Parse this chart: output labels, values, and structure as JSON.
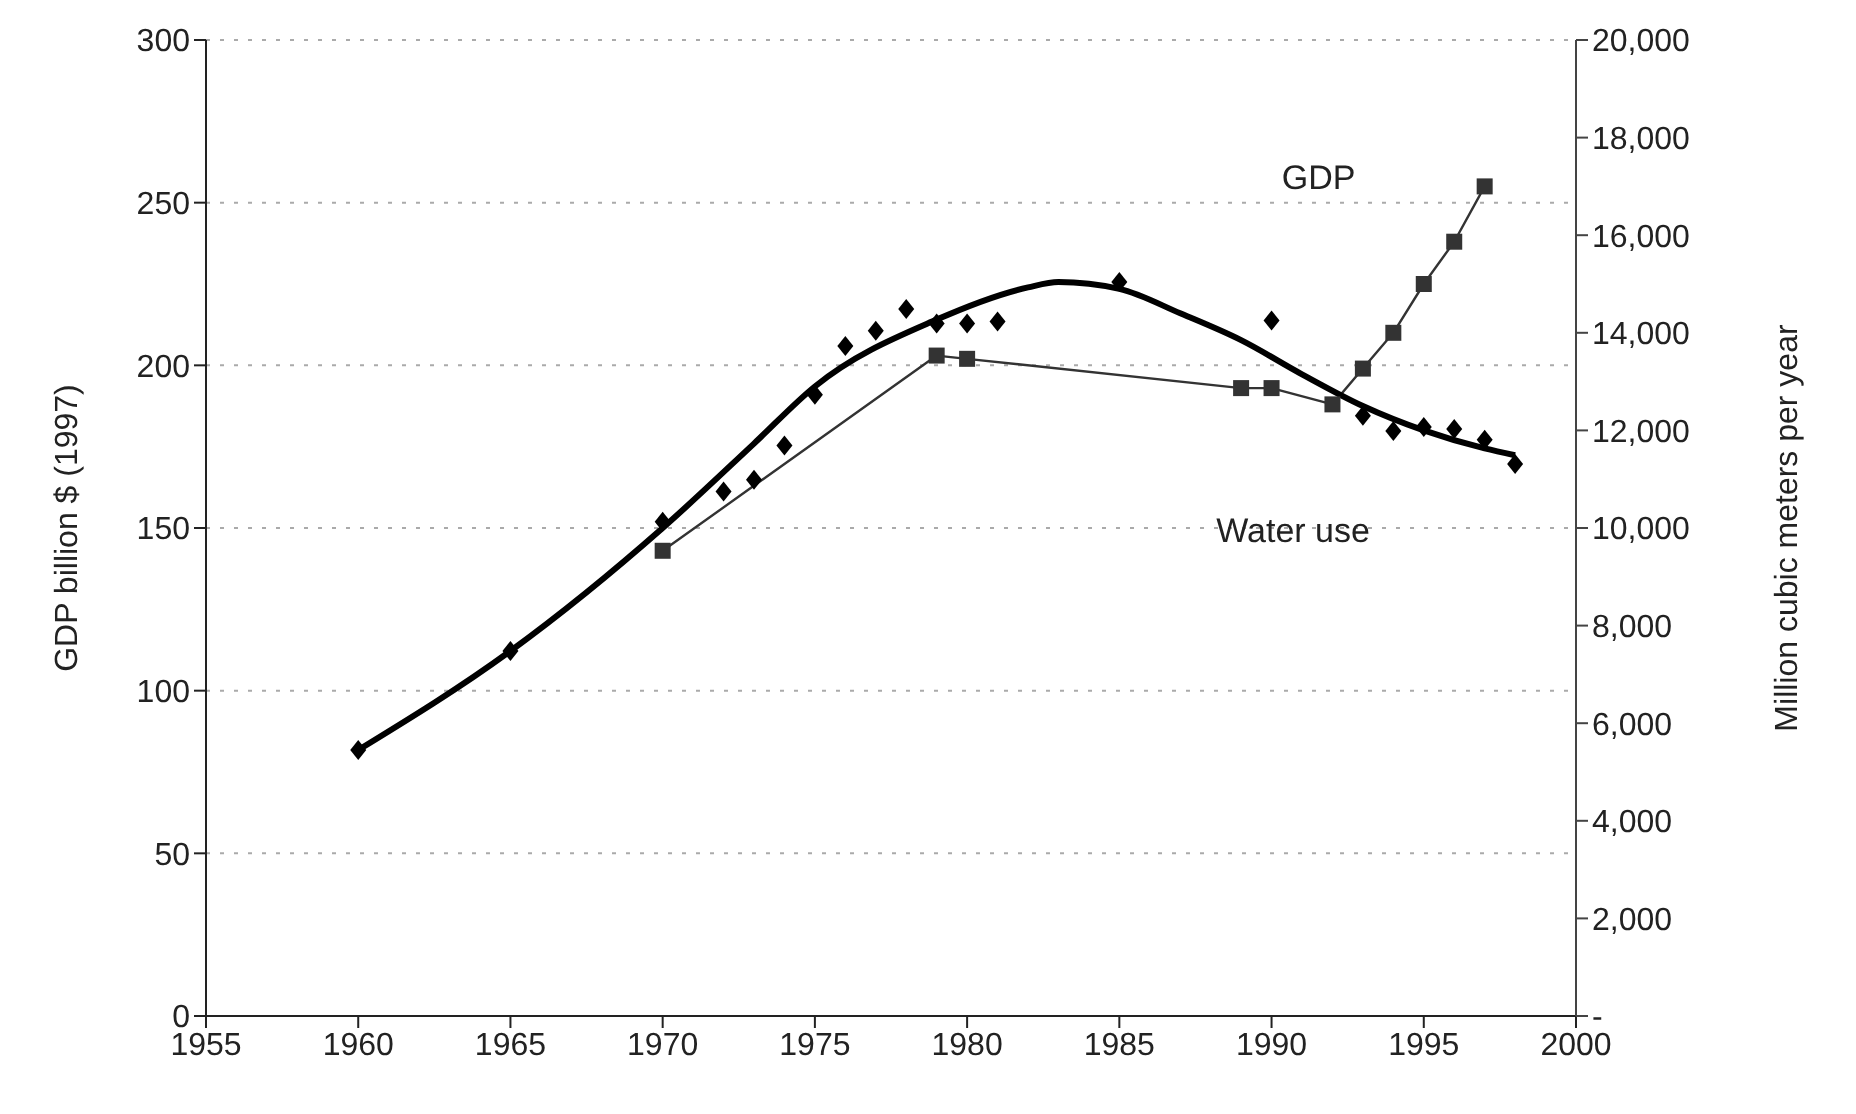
{
  "chart_data": {
    "type": "line",
    "ylabel": "GDP billion $ (1997)",
    "y2label": "Million cubic meters per year",
    "xlim": [
      1955,
      2000
    ],
    "xticks": [
      1955,
      1960,
      1965,
      1970,
      1975,
      1980,
      1985,
      1990,
      1995,
      2000
    ],
    "ylim": [
      0,
      300
    ],
    "yticks": [
      0,
      50,
      100,
      150,
      200,
      250,
      300
    ],
    "y2lim": [
      0,
      20000
    ],
    "y2ticks": [
      {
        "value": 0,
        "label": "-"
      },
      {
        "value": 2000,
        "label": "2,000"
      },
      {
        "value": 4000,
        "label": "4,000"
      },
      {
        "value": 6000,
        "label": "6,000"
      },
      {
        "value": 8000,
        "label": "8,000"
      },
      {
        "value": 10000,
        "label": "10,000"
      },
      {
        "value": 12000,
        "label": "12,000"
      },
      {
        "value": 14000,
        "label": "14,000"
      },
      {
        "value": 16000,
        "label": "16,000"
      },
      {
        "value": 18000,
        "label": "18,000"
      },
      {
        "value": 20000,
        "label": "20,000"
      }
    ],
    "grid": "y",
    "series": [
      {
        "name": "GDP",
        "color": "#333333",
        "marker": "square",
        "axis": "y",
        "x": [
          1970,
          1979,
          1980,
          1989,
          1990,
          1992,
          1993,
          1994,
          1995,
          1996,
          1997
        ],
        "values": [
          143,
          203,
          202,
          193,
          193,
          188,
          199,
          210,
          225,
          238,
          255
        ]
      },
      {
        "name": "Water use",
        "type": "scatter",
        "color": "#000000",
        "marker": "diamond",
        "axis": "y2",
        "x": [
          1960,
          1965,
          1970,
          1972,
          1973,
          1974,
          1975,
          1976,
          1977,
          1978,
          1979,
          1980,
          1981,
          1985,
          1990,
          1993,
          1994,
          1995,
          1996,
          1997,
          1998
        ],
        "values": [
          5450,
          7480,
          10130,
          10750,
          10990,
          11690,
          12730,
          13730,
          14040,
          14490,
          14190,
          14190,
          14230,
          15040,
          14250,
          12300,
          11990,
          12070,
          12030,
          11810,
          11310
        ]
      },
      {
        "color": "#000000",
        "marker": "none",
        "axis": "y2",
        "x": [
          1960,
          1965,
          1970,
          1973,
          1975,
          1979,
          1982,
          1983,
          1985,
          1987,
          1989,
          1991,
          1993,
          1995,
          1997,
          1998
        ],
        "values": [
          5450,
          7480,
          10000,
          11730,
          12900,
          14270,
          14930,
          15040,
          14900,
          14400,
          13850,
          13150,
          12500,
          12000,
          11630,
          11490
        ]
      }
    ]
  }
}
